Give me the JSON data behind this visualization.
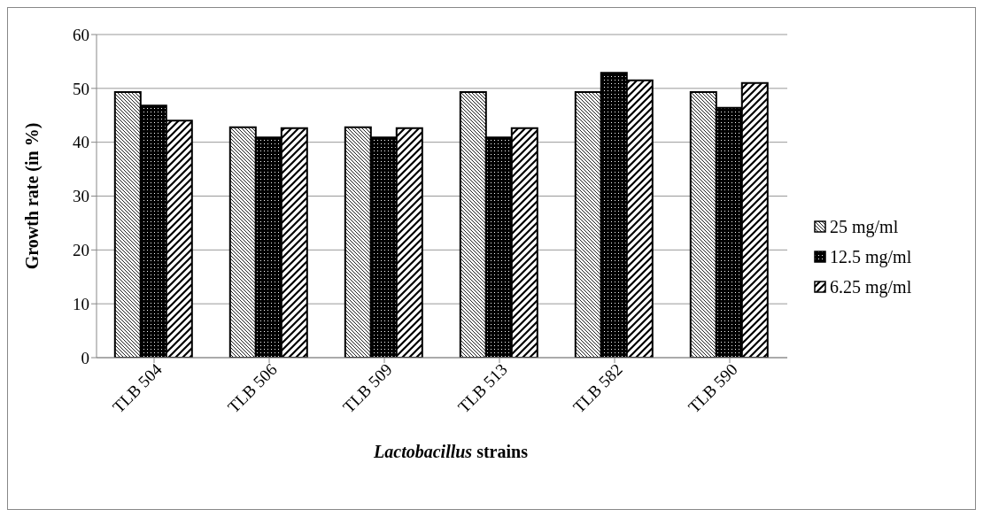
{
  "chart_data": {
    "type": "bar",
    "xlabel": "Lactobacillus strains",
    "ylabel": "Growth rate (in %)",
    "categories": [
      "TLB 504",
      "TLB 506",
      "TLB 509",
      "TLB 513",
      "TLB 582",
      "TLB 590"
    ],
    "series": [
      {
        "name": "25 mg/ml",
        "color": "#000000",
        "values": [
          49.3,
          42.8,
          42.8,
          49.3,
          49.3,
          49.3
        ]
      },
      {
        "name": "12.5 mg/ml",
        "color": "#000000",
        "values": [
          46.8,
          40.9,
          40.9,
          40.9,
          52.9,
          46.4
        ]
      },
      {
        "name": "6.25 mg/ml",
        "color": "#000000",
        "values": [
          44.0,
          42.6,
          42.6,
          42.6,
          51.5,
          51.0
        ]
      }
    ],
    "ylim": [
      0,
      60
    ],
    "yticks": [
      0,
      10,
      20,
      30,
      40,
      50,
      60
    ],
    "grid": "y",
    "legend": "right"
  }
}
